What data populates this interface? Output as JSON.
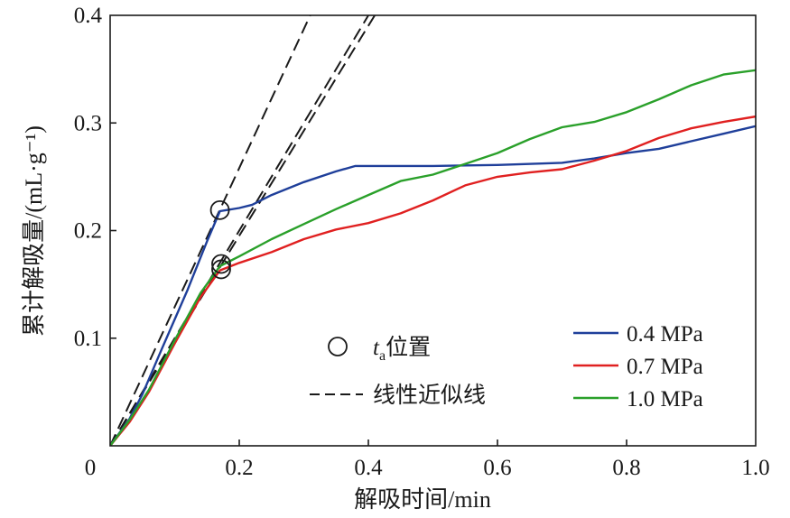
{
  "chart_data": {
    "type": "line",
    "xlabel": "解吸时间/min",
    "ylabel": "累计解吸量/(mL·g⁻¹)",
    "xlim": [
      0,
      1.0
    ],
    "ylim": [
      0,
      0.4
    ],
    "x_ticks": [
      "0",
      "0.2",
      "0.4",
      "0.6",
      "0.8",
      "1.0"
    ],
    "y_ticks": [
      "0.1",
      "0.2",
      "0.3",
      "0.4"
    ],
    "grid": false,
    "legend_position": "bottom-right",
    "series": [
      {
        "name": "0.4 MPa",
        "color": "#1f3f9a",
        "points": [
          [
            0,
            0
          ],
          [
            0.03,
            0.025
          ],
          [
            0.05,
            0.048
          ],
          [
            0.08,
            0.09
          ],
          [
            0.12,
            0.145
          ],
          [
            0.15,
            0.19
          ],
          [
            0.17,
            0.218
          ],
          [
            0.2,
            0.221
          ],
          [
            0.22,
            0.224
          ],
          [
            0.25,
            0.233
          ],
          [
            0.3,
            0.245
          ],
          [
            0.35,
            0.255
          ],
          [
            0.38,
            0.26
          ],
          [
            0.4,
            0.26
          ],
          [
            0.5,
            0.26
          ],
          [
            0.6,
            0.261
          ],
          [
            0.7,
            0.263
          ],
          [
            0.75,
            0.267
          ],
          [
            0.8,
            0.272
          ],
          [
            0.85,
            0.276
          ],
          [
            0.9,
            0.283
          ],
          [
            0.95,
            0.29
          ],
          [
            1.0,
            0.297
          ]
        ]
      },
      {
        "name": "0.7 MPa",
        "color": "#e02020",
        "points": [
          [
            0,
            0
          ],
          [
            0.03,
            0.022
          ],
          [
            0.06,
            0.05
          ],
          [
            0.1,
            0.095
          ],
          [
            0.14,
            0.138
          ],
          [
            0.17,
            0.163
          ],
          [
            0.2,
            0.17
          ],
          [
            0.25,
            0.18
          ],
          [
            0.3,
            0.192
          ],
          [
            0.35,
            0.201
          ],
          [
            0.4,
            0.207
          ],
          [
            0.45,
            0.216
          ],
          [
            0.5,
            0.228
          ],
          [
            0.55,
            0.242
          ],
          [
            0.6,
            0.25
          ],
          [
            0.65,
            0.254
          ],
          [
            0.7,
            0.257
          ],
          [
            0.75,
            0.265
          ],
          [
            0.8,
            0.274
          ],
          [
            0.85,
            0.286
          ],
          [
            0.9,
            0.295
          ],
          [
            0.95,
            0.301
          ],
          [
            1.0,
            0.306
          ]
        ]
      },
      {
        "name": "1.0 MPa",
        "color": "#2aa02a",
        "points": [
          [
            0,
            0
          ],
          [
            0.03,
            0.024
          ],
          [
            0.06,
            0.052
          ],
          [
            0.1,
            0.098
          ],
          [
            0.14,
            0.142
          ],
          [
            0.17,
            0.167
          ],
          [
            0.2,
            0.176
          ],
          [
            0.25,
            0.192
          ],
          [
            0.3,
            0.206
          ],
          [
            0.35,
            0.22
          ],
          [
            0.4,
            0.233
          ],
          [
            0.45,
            0.246
          ],
          [
            0.5,
            0.252
          ],
          [
            0.55,
            0.262
          ],
          [
            0.6,
            0.272
          ],
          [
            0.65,
            0.285
          ],
          [
            0.7,
            0.296
          ],
          [
            0.75,
            0.301
          ],
          [
            0.8,
            0.31
          ],
          [
            0.85,
            0.322
          ],
          [
            0.9,
            0.335
          ],
          [
            0.95,
            0.345
          ],
          [
            1.0,
            0.349
          ]
        ]
      }
    ],
    "linear_fits": [
      {
        "points": [
          [
            0,
            0
          ],
          [
            0.31,
            0.4
          ]
        ]
      },
      {
        "points": [
          [
            0,
            0
          ],
          [
            0.4,
            0.4
          ]
        ]
      },
      {
        "points": [
          [
            0,
            0
          ],
          [
            0.41,
            0.4
          ]
        ]
      }
    ],
    "ta_markers": [
      {
        "x": 0.17,
        "y": 0.219
      },
      {
        "x": 0.172,
        "y": 0.169
      },
      {
        "x": 0.172,
        "y": 0.164
      }
    ],
    "annotation_legend": {
      "ta_label_italic": "t",
      "ta_label_sub": "a",
      "ta_label_rest": "位置",
      "fit_label": "线性近似线"
    }
  }
}
